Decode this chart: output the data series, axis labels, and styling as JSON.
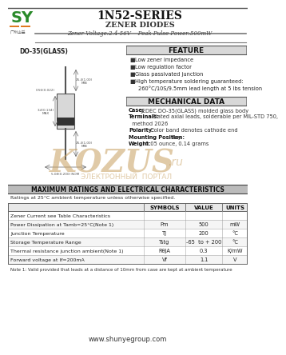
{
  "title": "1N52-SERIES",
  "subtitle": "ZENER DIODES",
  "subtitle2": "Zener Voltage:2.4-56V    Peak Pulse Power:500mW",
  "feature_title": "FEATURE",
  "features": [
    "Low zener impedance",
    "Low regulation factor",
    "Glass passivated junction",
    "High temperature soldering guaranteed:",
    "260°C/10S/9.5mm lead length at 5 lbs tension"
  ],
  "mech_title": "MECHANICAL DATA",
  "mech_data": [
    [
      "Case:",
      "JEDEC DO-35(GLASS) molded glass body"
    ],
    [
      "Terminals:",
      "Plated axial leads, solderable per MIL-STD 750,"
    ],
    [
      "",
      "  method 2026"
    ],
    [
      "Polarity:",
      "Color band denotes cathode end"
    ],
    [
      "Mounting Position:",
      "Any"
    ],
    [
      "Weight:",
      "0.05 ounce, 0.14 grams"
    ]
  ],
  "max_ratings_title": "MAXIMUM RATINGS AND ELECTRICAL CHARACTERISTICS",
  "ratings_note": "Ratings at 25°C ambient temperature unless otherwise specified.",
  "table_rows": [
    [
      "Zener Current see Table Characteristics",
      "",
      "",
      ""
    ],
    [
      "Power Dissipation at Tamb=25°C(Note 1)",
      "Pm",
      "500",
      "mW"
    ],
    [
      "Junction Temperature",
      "Tj",
      "200",
      "°C"
    ],
    [
      "Storage Temperature Range",
      "Tstg",
      "-65  to + 200",
      "°C"
    ],
    [
      "Thermal resistance junction ambient(Note 1)",
      "RθJA",
      "0.3",
      "K/mW"
    ],
    [
      "Forward voltage at If=200mA",
      "Vf",
      "1.1",
      "V"
    ]
  ],
  "note": "Note 1: Valid provided that leads at a distance of 10mm from case are kept at ambient temperature",
  "website": "www.shunyegroup.com",
  "package_label": "DO-35(GLASS)",
  "watermark": "KOZUS",
  "watermark2": "ЭЛЕКТРОННЫЙ  ПОРТАЛ",
  "watermark3": ".ru",
  "bg_color": "#ffffff",
  "section_title_bg": "#d8d8d8",
  "orange_line": "#e07820",
  "green_color": "#2a8a2a",
  "watermark_color": "#c8a060",
  "header_sep_color": "#777777"
}
